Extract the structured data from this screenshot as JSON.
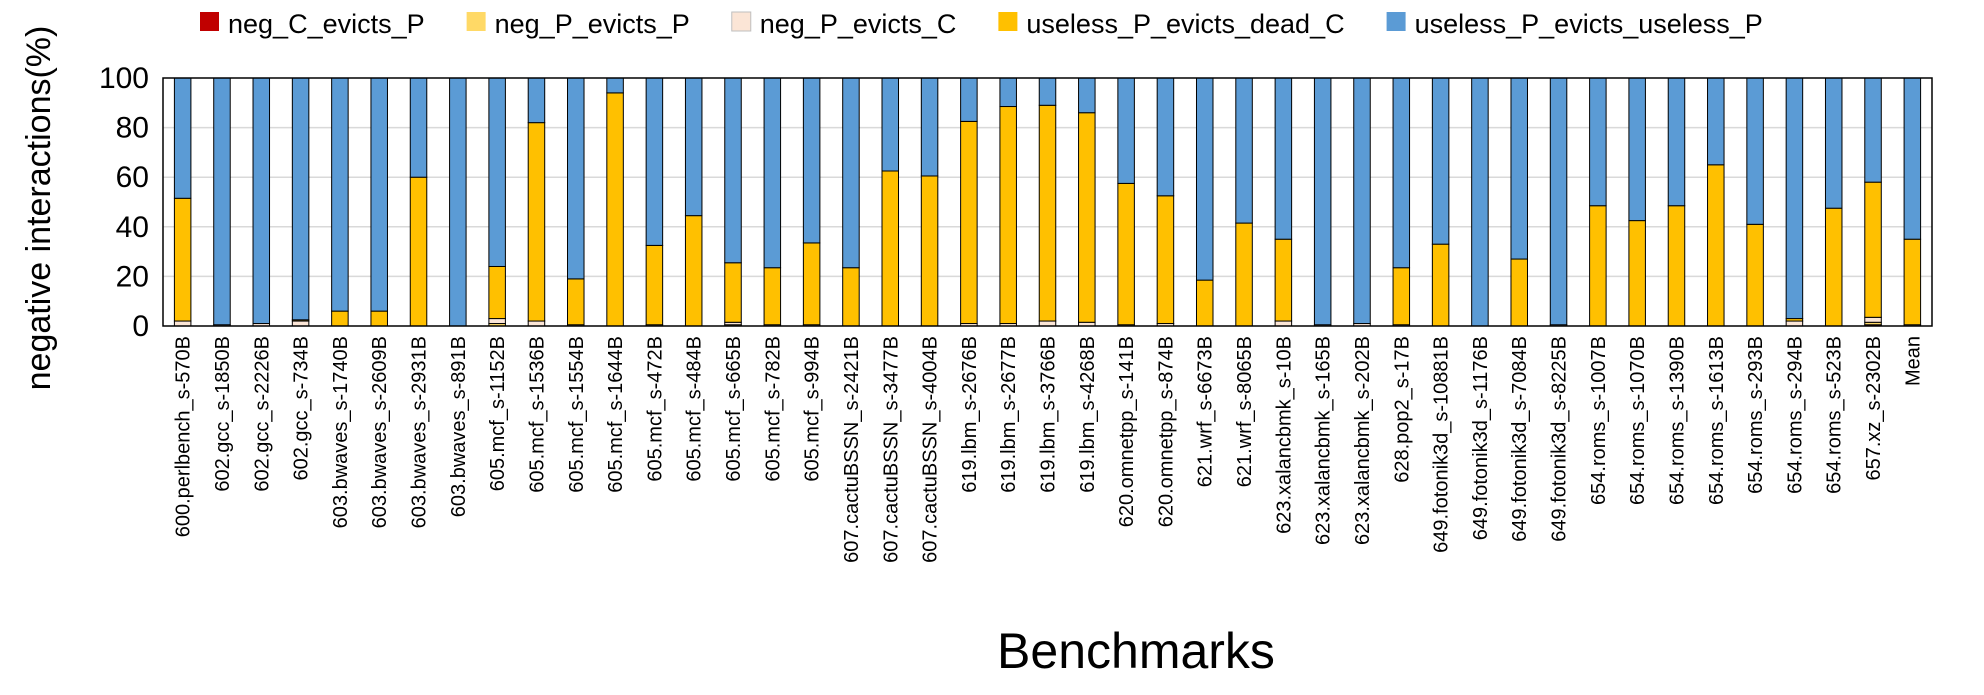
{
  "chart_data": {
    "type": "bar",
    "stacked": true,
    "xlabel": "Benchmarks",
    "ylabel": "negative interactions(%)",
    "ylim": [
      0,
      100
    ],
    "yticks": [
      0,
      20,
      40,
      60,
      80,
      100
    ],
    "grid": true,
    "legend_position": "top",
    "categories": [
      "600.perlbench_s-570B",
      "602.gcc_s-1850B",
      "602.gcc_s-2226B",
      "602.gcc_s-734B",
      "603.bwaves_s-1740B",
      "603.bwaves_s-2609B",
      "603.bwaves_s-2931B",
      "603.bwaves_s-891B",
      "605.mcf_s-1152B",
      "605.mcf_s-1536B",
      "605.mcf_s-1554B",
      "605.mcf_s-1644B",
      "605.mcf_s-472B",
      "605.mcf_s-484B",
      "605.mcf_s-665B",
      "605.mcf_s-782B",
      "605.mcf_s-994B",
      "607.cactuBSSN_s-2421B",
      "607.cactuBSSN_s-3477B",
      "607.cactuBSSN_s-4004B",
      "619.lbm_s-2676B",
      "619.lbm_s-2677B",
      "619.lbm_s-3766B",
      "619.lbm_s-4268B",
      "620.omnetpp_s-141B",
      "620.omnetpp_s-874B",
      "621.wrf_s-6673B",
      "621.wrf_s-8065B",
      "623.xalancbmk_s-10B",
      "623.xalancbmk_s-165B",
      "623.xalancbmk_s-202B",
      "628.pop2_s-17B",
      "649.fotonik3d_s-10881B",
      "649.fotonik3d_s-1176B",
      "649.fotonik3d_s-7084B",
      "649.fotonik3d_s-8225B",
      "654.roms_s-1007B",
      "654.roms_s-1070B",
      "654.roms_s-1390B",
      "654.roms_s-1613B",
      "654.roms_s-293B",
      "654.roms_s-294B",
      "654.roms_s-523B",
      "657.xz_s-2302B",
      "Mean"
    ],
    "series": [
      {
        "name": "neg_C_evicts_P",
        "color": "#C00000",
        "values": [
          0,
          0,
          0,
          0,
          0,
          0,
          0,
          0,
          0,
          0,
          0,
          0,
          0,
          0,
          0,
          0,
          0,
          0,
          0,
          0,
          0,
          0,
          0,
          0,
          0,
          0,
          0,
          0,
          0,
          0,
          0,
          0,
          0,
          0,
          0,
          0,
          0,
          0,
          0,
          0,
          0,
          0,
          0,
          0.5,
          0
        ]
      },
      {
        "name": "neg_P_evicts_P",
        "color": "#FFD966",
        "values": [
          0,
          0,
          0,
          0,
          0,
          0,
          0,
          0,
          1,
          0,
          0,
          0,
          0,
          0,
          0.5,
          0,
          0,
          0,
          0,
          0,
          0,
          0,
          0,
          0,
          0,
          0,
          0,
          0,
          0,
          0,
          0,
          0,
          0,
          0,
          0,
          0,
          0,
          0,
          0,
          0,
          0,
          0,
          0,
          1,
          0
        ]
      },
      {
        "name": "neg_P_evicts_C",
        "color": "#FBE5D6",
        "values": [
          2,
          0.5,
          1,
          2,
          0,
          0,
          0,
          0,
          2,
          2,
          0.5,
          0,
          0.5,
          0,
          1,
          0.5,
          0.5,
          0,
          0,
          0,
          1,
          1,
          2,
          1.5,
          0.5,
          1,
          0,
          0,
          2,
          0.5,
          1,
          0.5,
          0,
          0,
          0,
          0.5,
          0,
          0,
          0,
          0,
          0,
          2,
          0,
          2,
          0.5
        ]
      },
      {
        "name": "useless_P_evicts_dead_C",
        "color": "#FFC000",
        "values": [
          49.5,
          0,
          0,
          0.5,
          6,
          6,
          60,
          0,
          21,
          80,
          18.5,
          94,
          32,
          44.5,
          24,
          23,
          33,
          23.5,
          62.5,
          60.5,
          81.5,
          87.5,
          87,
          84.5,
          57,
          51.5,
          18.5,
          41.5,
          33,
          0,
          0,
          23,
          33,
          0,
          27,
          0,
          48.5,
          42.5,
          48.5,
          65,
          41,
          1,
          47.5,
          54.5,
          34.5
        ]
      },
      {
        "name": "useless_P_evicts_useless_P",
        "color": "#5B9BD5",
        "values": [
          48.5,
          99.5,
          99,
          97.5,
          94,
          94,
          40,
          100,
          76,
          18,
          81,
          6,
          67.5,
          55.5,
          74.5,
          76.5,
          66.5,
          76.5,
          37.5,
          39.5,
          17.5,
          11.5,
          11,
          14,
          42.5,
          47.5,
          81.5,
          58.5,
          65,
          99.5,
          99,
          76.5,
          67,
          100,
          73,
          99.5,
          51.5,
          57.5,
          51.5,
          35,
          59,
          97,
          52.5,
          42,
          65
        ]
      }
    ]
  }
}
